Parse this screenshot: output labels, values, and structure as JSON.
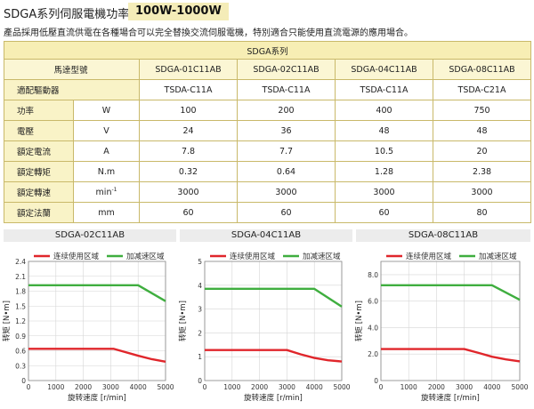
{
  "header": {
    "title": "SDGA系列伺服電機功率",
    "badge": "100W-1000W",
    "description": "產品採用低壓直流供電在各種場合可以完全替換交流伺服電機，特別適合只能使用直流電源的應用場合。"
  },
  "spec_table": {
    "series_title": "SDGA系列",
    "model_label": "馬達型號",
    "models": [
      "SDGA-01C11AB",
      "SDGA-02C11AB",
      "SDGA-04C11AB",
      "SDGA-08C11AB"
    ],
    "driver_label": "適配驅動器",
    "drivers": [
      "TSDA-C11A",
      "TSDA-C11A",
      "TSDA-C11A",
      "TSDA-C21A"
    ],
    "rows": [
      {
        "label": "功率",
        "unit": "W",
        "values": [
          "100",
          "200",
          "400",
          "750"
        ]
      },
      {
        "label": "電壓",
        "unit": "V",
        "values": [
          "24",
          "36",
          "48",
          "48"
        ]
      },
      {
        "label": "額定電流",
        "unit": "A",
        "values": [
          "7.8",
          "7.7",
          "10.5",
          "20"
        ]
      },
      {
        "label": "額定轉矩",
        "unit": "N.m",
        "values": [
          "0.32",
          "0.64",
          "1.28",
          "2.38"
        ]
      },
      {
        "label": "額定轉速",
        "unit": "min",
        "unit_sup": "-1",
        "values": [
          "3000",
          "3000",
          "3000",
          "3000"
        ]
      },
      {
        "label": "額定法蘭",
        "unit": "mm",
        "values": [
          "60",
          "60",
          "60",
          "80"
        ]
      }
    ]
  },
  "chart_data": [
    {
      "type": "line",
      "title": "SDGA-02C11AB",
      "xlabel": "旋转速度 [r/min]",
      "ylabel": "转矩 [N•m]",
      "xlim": [
        0,
        5000
      ],
      "ylim": [
        0,
        2.4
      ],
      "xticks": [
        0,
        1000,
        2000,
        3000,
        4000,
        5000
      ],
      "yticks": [
        0,
        0.3,
        0.6,
        0.9,
        1.2,
        1.5,
        1.8,
        2.1,
        2.4
      ],
      "legend": "top",
      "series": [
        {
          "name": "连续使用区域",
          "color": "#e0262b",
          "x": [
            0,
            3100,
            4000,
            4500,
            5000
          ],
          "y": [
            0.64,
            0.64,
            0.5,
            0.43,
            0.38
          ]
        },
        {
          "name": "加减速区域",
          "color": "#3fae3f",
          "x": [
            0,
            4000,
            5000
          ],
          "y": [
            1.92,
            1.92,
            1.6
          ]
        }
      ]
    },
    {
      "type": "line",
      "title": "SDGA-04C11AB",
      "xlabel": "旋转速度 [r/min]",
      "ylabel": "转矩 [N•m]",
      "xlim": [
        0,
        5000
      ],
      "ylim": [
        0,
        5
      ],
      "xticks": [
        0,
        1000,
        2000,
        3000,
        4000,
        5000
      ],
      "yticks": [
        0,
        1,
        2,
        3,
        4,
        5
      ],
      "legend": "top",
      "series": [
        {
          "name": "连续使用区域",
          "color": "#e0262b",
          "x": [
            0,
            3000,
            3500,
            4000,
            4500,
            5000
          ],
          "y": [
            1.28,
            1.28,
            1.1,
            0.95,
            0.85,
            0.8
          ]
        },
        {
          "name": "加减速区域",
          "color": "#3fae3f",
          "x": [
            0,
            4000,
            5000
          ],
          "y": [
            3.85,
            3.85,
            3.1
          ]
        }
      ]
    },
    {
      "type": "line",
      "title": "SDGA-08C11AB",
      "xlabel": "旋转速度 [r/min]",
      "ylabel": "转矩 [N•m]",
      "xlim": [
        0,
        5000
      ],
      "ylim": [
        0,
        9
      ],
      "xticks": [
        0,
        1000,
        2000,
        3000,
        4000,
        5000
      ],
      "yticks": [
        0,
        2.0,
        4.0,
        6.0,
        8.0
      ],
      "ytick_labels": [
        "0",
        "2.0",
        "4.0",
        "6.0",
        "8.0"
      ],
      "legend": "top",
      "series": [
        {
          "name": "连续使用区域",
          "color": "#e0262b",
          "x": [
            0,
            3000,
            3500,
            4000,
            4500,
            5000
          ],
          "y": [
            2.38,
            2.38,
            2.1,
            1.8,
            1.6,
            1.45
          ]
        },
        {
          "name": "加减速区域",
          "color": "#3fae3f",
          "x": [
            0,
            4000,
            5000
          ],
          "y": [
            7.2,
            7.2,
            6.1
          ]
        }
      ]
    }
  ]
}
